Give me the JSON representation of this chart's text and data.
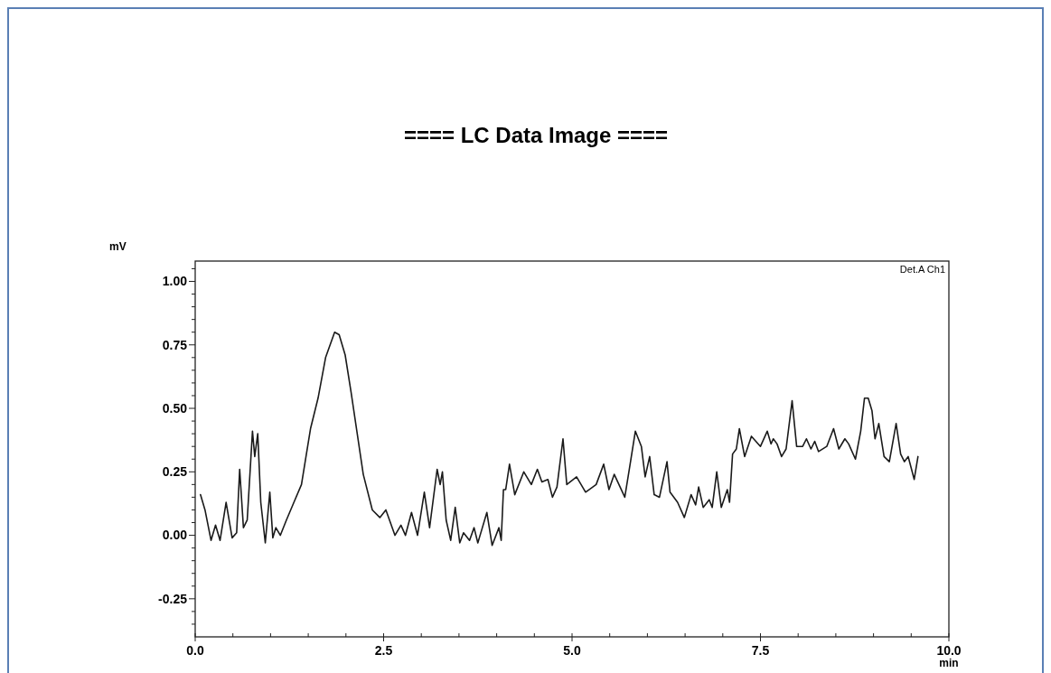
{
  "chart_data": {
    "type": "line",
    "title": "==== LC Data Image ====",
    "xlabel": "min",
    "ylabel": "mV",
    "annotations": [
      "Det.A Ch1"
    ],
    "xlim": [
      0,
      10
    ],
    "ylim": [
      -0.4,
      1.08
    ],
    "xticks": [
      {
        "value": 0,
        "label": "0.0"
      },
      {
        "value": 0.5,
        "label": null
      },
      {
        "value": 1,
        "label": null
      },
      {
        "value": 1.5,
        "label": null
      },
      {
        "value": 2,
        "label": null
      },
      {
        "value": 2.5,
        "label": "2.5"
      },
      {
        "value": 3,
        "label": null
      },
      {
        "value": 3.5,
        "label": null
      },
      {
        "value": 4,
        "label": null
      },
      {
        "value": 4.5,
        "label": null
      },
      {
        "value": 5,
        "label": "5.0"
      },
      {
        "value": 5.5,
        "label": null
      },
      {
        "value": 6,
        "label": null
      },
      {
        "value": 6.5,
        "label": null
      },
      {
        "value": 7,
        "label": null
      },
      {
        "value": 7.5,
        "label": "7.5"
      },
      {
        "value": 8,
        "label": null
      },
      {
        "value": 8.5,
        "label": null
      },
      {
        "value": 9,
        "label": null
      },
      {
        "value": 9.5,
        "label": null
      },
      {
        "value": 10,
        "label": "10.0"
      }
    ],
    "yticks": [
      {
        "value": -0.35,
        "label": null
      },
      {
        "value": -0.3,
        "label": null
      },
      {
        "value": -0.25,
        "label": "-0.25"
      },
      {
        "value": -0.2,
        "label": null
      },
      {
        "value": -0.15,
        "label": null
      },
      {
        "value": -0.1,
        "label": null
      },
      {
        "value": -0.05,
        "label": null
      },
      {
        "value": 0,
        "label": "0.00"
      },
      {
        "value": 0.05,
        "label": null
      },
      {
        "value": 0.1,
        "label": null
      },
      {
        "value": 0.15,
        "label": null
      },
      {
        "value": 0.2,
        "label": null
      },
      {
        "value": 0.25,
        "label": "0.25"
      },
      {
        "value": 0.3,
        "label": null
      },
      {
        "value": 0.35,
        "label": null
      },
      {
        "value": 0.4,
        "label": null
      },
      {
        "value": 0.45,
        "label": null
      },
      {
        "value": 0.5,
        "label": "0.50"
      },
      {
        "value": 0.55,
        "label": null
      },
      {
        "value": 0.6,
        "label": null
      },
      {
        "value": 0.65,
        "label": null
      },
      {
        "value": 0.7,
        "label": null
      },
      {
        "value": 0.75,
        "label": "0.75"
      },
      {
        "value": 0.8,
        "label": null
      },
      {
        "value": 0.85,
        "label": null
      },
      {
        "value": 0.9,
        "label": null
      },
      {
        "value": 0.95,
        "label": null
      },
      {
        "value": 1,
        "label": "1.00"
      },
      {
        "value": 1.05,
        "label": null
      }
    ],
    "marker": "none",
    "line_style": "solid",
    "series": [
      {
        "color": "#1a1a1a",
        "x": [
          0.07,
          0.13,
          0.21,
          0.27,
          0.33,
          0.41,
          0.49,
          0.55,
          0.59,
          0.64,
          0.69,
          0.76,
          0.79,
          0.83,
          0.87,
          0.93,
          0.99,
          1.03,
          1.07,
          1.13,
          1.21,
          1.31,
          1.41,
          1.53,
          1.63,
          1.73,
          1.85,
          1.91,
          1.99,
          2.07,
          2.23,
          2.35,
          2.45,
          2.53,
          2.65,
          2.73,
          2.79,
          2.87,
          2.95,
          3.04,
          3.11,
          3.21,
          3.25,
          3.28,
          3.33,
          3.39,
          3.45,
          3.51,
          3.56,
          3.64,
          3.7,
          3.75,
          3.77,
          3.87,
          3.94,
          4.03,
          4.06,
          4.09,
          4.12,
          4.17,
          4.24,
          4.36,
          4.46,
          4.54,
          4.6,
          4.68,
          4.74,
          4.8,
          4.88,
          4.93,
          5.06,
          5.18,
          5.32,
          5.42,
          5.49,
          5.56,
          5.7,
          5.76,
          5.84,
          5.92,
          5.97,
          6.03,
          6.09,
          6.16,
          6.26,
          6.3,
          6.4,
          6.49,
          6.58,
          6.64,
          6.68,
          6.74,
          6.82,
          6.86,
          6.92,
          6.98,
          7.06,
          7.09,
          7.13,
          7.18,
          7.22,
          7.29,
          7.38,
          7.5,
          7.59,
          7.64,
          7.67,
          7.72,
          7.78,
          7.84,
          7.92,
          7.98,
          8.06,
          8.11,
          8.17,
          8.22,
          8.27,
          8.38,
          8.47,
          8.54,
          8.62,
          8.67,
          8.76,
          8.83,
          8.88,
          8.93,
          8.98,
          9.02,
          9.07,
          9.14,
          9.21,
          9.3,
          9.36,
          9.41,
          9.46,
          9.54,
          9.59
        ],
        "values": [
          0.16,
          0.1,
          -0.02,
          0.04,
          -0.02,
          0.13,
          -0.01,
          0.01,
          0.26,
          0.03,
          0.06,
          0.41,
          0.31,
          0.4,
          0.13,
          -0.03,
          0.17,
          -0.01,
          0.03,
          0,
          0.06,
          0.13,
          0.2,
          0.42,
          0.54,
          0.7,
          0.8,
          0.79,
          0.71,
          0.56,
          0.24,
          0.1,
          0.07,
          0.1,
          0,
          0.04,
          0,
          0.09,
          0,
          0.17,
          0.03,
          0.26,
          0.2,
          0.25,
          0.06,
          -0.02,
          0.11,
          -0.03,
          0.01,
          -0.02,
          0.03,
          -0.03,
          -0.01,
          0.09,
          -0.04,
          0.03,
          -0.02,
          0.18,
          0.18,
          0.28,
          0.16,
          0.25,
          0.2,
          0.26,
          0.21,
          0.22,
          0.15,
          0.19,
          0.38,
          0.2,
          0.23,
          0.17,
          0.2,
          0.28,
          0.18,
          0.24,
          0.15,
          0.26,
          0.41,
          0.35,
          0.23,
          0.31,
          0.16,
          0.15,
          0.29,
          0.17,
          0.13,
          0.07,
          0.16,
          0.12,
          0.19,
          0.11,
          0.14,
          0.11,
          0.25,
          0.11,
          0.18,
          0.13,
          0.32,
          0.34,
          0.42,
          0.31,
          0.39,
          0.35,
          0.41,
          0.36,
          0.38,
          0.36,
          0.31,
          0.34,
          0.53,
          0.35,
          0.35,
          0.38,
          0.34,
          0.37,
          0.33,
          0.35,
          0.42,
          0.34,
          0.38,
          0.36,
          0.3,
          0.41,
          0.54,
          0.54,
          0.49,
          0.38,
          0.44,
          0.31,
          0.29,
          0.44,
          0.32,
          0.29,
          0.31,
          0.22,
          0.31
        ]
      }
    ]
  }
}
